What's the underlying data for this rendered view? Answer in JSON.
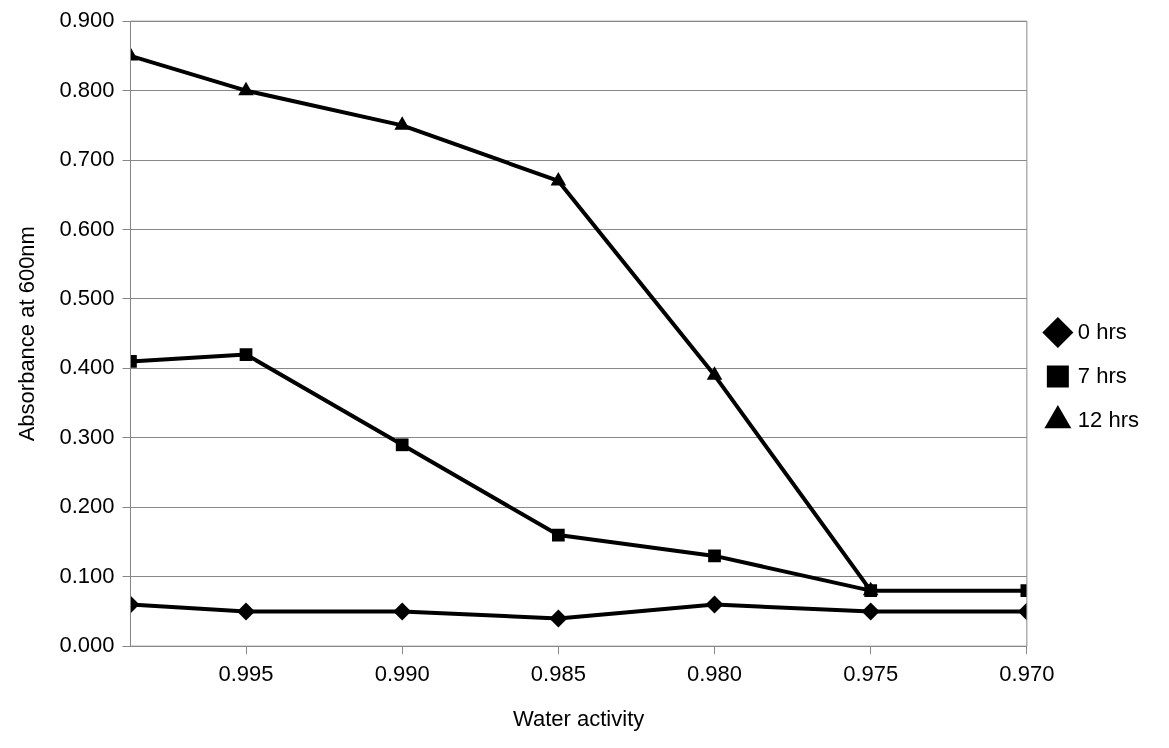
{
  "chart_data": {
    "type": "line",
    "xlabel": "Water activity",
    "ylabel": "Absorbance at 600nm",
    "x": [
      0.9987,
      0.995,
      0.99,
      0.985,
      0.98,
      0.975,
      0.97
    ],
    "series": [
      {
        "name": "0 hrs",
        "color": "#000000",
        "marker": "diamond",
        "values": [
          0.06,
          0.05,
          0.05,
          0.04,
          0.06,
          0.05,
          0.05
        ]
      },
      {
        "name": "7 hrs",
        "color": "#000000",
        "marker": "square",
        "values": [
          0.41,
          0.42,
          0.29,
          0.16,
          0.13,
          0.08,
          0.08
        ]
      },
      {
        "name": "12 hrs",
        "color": "#000000",
        "marker": "triangle",
        "values": [
          0.85,
          0.8,
          0.75,
          0.67,
          0.39,
          0.08,
          null
        ]
      }
    ],
    "xlim": [
      0.9987,
      0.97
    ],
    "xticks": [
      {
        "value": 0.995,
        "label": "0.995"
      },
      {
        "value": 0.99,
        "label": "0.990"
      },
      {
        "value": 0.985,
        "label": "0.985"
      },
      {
        "value": 0.98,
        "label": "0.980"
      },
      {
        "value": 0.975,
        "label": "0.975"
      },
      {
        "value": 0.97,
        "label": "0.970"
      }
    ],
    "ylim": [
      0,
      0.9
    ],
    "yticks": [
      {
        "value": 0,
        "label": "0.000"
      },
      {
        "value": 0.1,
        "label": "0.100"
      },
      {
        "value": 0.2,
        "label": "0.200"
      },
      {
        "value": 0.3,
        "label": "0.300"
      },
      {
        "value": 0.4,
        "label": "0.400"
      },
      {
        "value": 0.5,
        "label": "0.500"
      },
      {
        "value": 0.6,
        "label": "0.600"
      },
      {
        "value": 0.7,
        "label": "0.700"
      },
      {
        "value": 0.8,
        "label": "0.800"
      },
      {
        "value": 0.9,
        "label": "0.900"
      }
    ],
    "grid": "y",
    "legend": "right",
    "line_style": "solid"
  }
}
